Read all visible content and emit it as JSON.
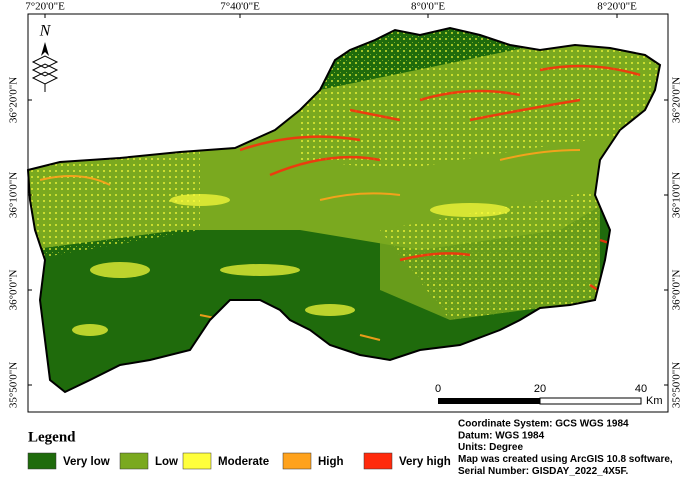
{
  "graticule": {
    "top": [
      "7°20'0\"E",
      "7°40'0\"E",
      "8°0'0\"E",
      "8°20'0\"E"
    ],
    "left": [
      "36°20'0\"N",
      "36°10'0\"N",
      "36°0'0\"N",
      "35°50'0\"N"
    ],
    "right": [
      "36°20'0\"N",
      "36°10'0\"N",
      "36°0'0\"N",
      "35°50'0\"N"
    ]
  },
  "north_arrow": "N",
  "scale_bar": {
    "ticks": [
      0,
      20,
      40
    ],
    "unit": "Km"
  },
  "legend": {
    "title": "Legend",
    "items": [
      {
        "label": "Very low",
        "color": "#1f6b0c"
      },
      {
        "label": "Low",
        "color": "#7aa91f"
      },
      {
        "label": "Moderate",
        "color": "#ffff3c"
      },
      {
        "label": "High",
        "color": "#ffa21c"
      },
      {
        "label": "Very high",
        "color": "#ff2a0c"
      }
    ]
  },
  "notes": [
    "Coordinate System: GCS WGS 1984",
    "Datum: WGS 1984",
    "Units: Degree",
    "Map was created using ArcGIS 10.8 software,",
    "Serial Number: GISDAY_2022_4X5F."
  ]
}
